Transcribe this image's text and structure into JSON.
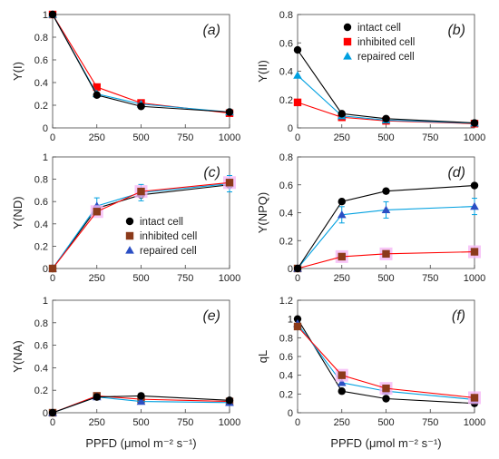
{
  "colors": {
    "intact": "#000000",
    "inhibited": "#ff0000",
    "inhibited_marker": "#8b3a1a",
    "repaired": "#00a0e0",
    "repaired_marker": "#2b4fc4",
    "error_halo": "#f5b8f5",
    "axis": "#444444",
    "grid": "none"
  },
  "legend_labels": {
    "intact": "intact cell",
    "inhibited": "inhibited cell",
    "repaired": "repaired cell"
  },
  "chart_data": [
    {
      "id": "a",
      "type": "line",
      "label": "(a)",
      "ylabel": "Y(I)",
      "xlabel": "",
      "x": [
        0,
        250,
        500,
        1000
      ],
      "xticks": [
        "0",
        "250",
        "500",
        "750",
        "1000"
      ],
      "ylim": [
        0,
        1
      ],
      "yticks": [
        "0",
        "0.2",
        "0.4",
        "0.6",
        "0.8",
        "1"
      ],
      "legend": "none",
      "series": [
        {
          "key": "intact",
          "values": [
            1.0,
            0.29,
            0.19,
            0.14
          ]
        },
        {
          "key": "inhibited",
          "values": [
            1.0,
            0.36,
            0.22,
            0.13
          ]
        },
        {
          "key": "repaired",
          "values": [
            1.0,
            0.3,
            0.21,
            0.14
          ]
        }
      ]
    },
    {
      "id": "b",
      "type": "line",
      "label": "(b)",
      "ylabel": "Y(II)",
      "xlabel": "",
      "x": [
        0,
        250,
        500,
        1000
      ],
      "xticks": [
        "0",
        "250",
        "500",
        "750",
        "1000"
      ],
      "ylim": [
        0,
        0.8
      ],
      "yticks": [
        "0",
        "0.2",
        "0.4",
        "0.6",
        "0.8"
      ],
      "legend": "top-right",
      "series": [
        {
          "key": "intact",
          "values": [
            0.55,
            0.1,
            0.065,
            0.035
          ]
        },
        {
          "key": "inhibited",
          "values": [
            0.18,
            0.075,
            0.05,
            0.03
          ]
        },
        {
          "key": "repaired",
          "values": [
            0.37,
            0.085,
            0.055,
            0.033
          ]
        }
      ]
    },
    {
      "id": "c",
      "type": "line",
      "label": "(c)",
      "ylabel": "Y(ND)",
      "xlabel": "",
      "x": [
        0,
        250,
        500,
        1000
      ],
      "xticks": [
        "0",
        "250",
        "500",
        "750",
        "1000"
      ],
      "ylim": [
        0,
        1
      ],
      "yticks": [
        "0",
        "0.2",
        "0.4",
        "0.6",
        "0.8",
        "1"
      ],
      "legend": "bottom-right",
      "series": [
        {
          "key": "intact",
          "values": [
            0.0,
            0.54,
            0.66,
            0.75
          ]
        },
        {
          "key": "inhibited",
          "values": [
            0.0,
            0.51,
            0.69,
            0.77
          ]
        },
        {
          "key": "repaired",
          "values": [
            0.0,
            0.56,
            0.68,
            0.76
          ]
        }
      ]
    },
    {
      "id": "d",
      "type": "line",
      "label": "(d)",
      "ylabel": "Y(NPQ)",
      "xlabel": "",
      "x": [
        0,
        250,
        500,
        1000
      ],
      "xticks": [
        "0",
        "250",
        "500",
        "750",
        "1000"
      ],
      "ylim": [
        0,
        0.8
      ],
      "yticks": [
        "0",
        "0.2",
        "0.4",
        "0.6",
        "0.8"
      ],
      "legend": "none",
      "series": [
        {
          "key": "intact",
          "values": [
            0.0,
            0.48,
            0.555,
            0.595
          ]
        },
        {
          "key": "inhibited",
          "values": [
            0.0,
            0.085,
            0.105,
            0.12
          ]
        },
        {
          "key": "repaired",
          "values": [
            0.0,
            0.385,
            0.42,
            0.445
          ]
        }
      ]
    },
    {
      "id": "e",
      "type": "line",
      "label": "(e)",
      "ylabel": "Y(NA)",
      "xlabel": "PPFD (μmol m⁻² s⁻¹)",
      "x": [
        0,
        250,
        500,
        1000
      ],
      "xticks": [
        "0",
        "250",
        "500",
        "750",
        "1000"
      ],
      "ylim": [
        0,
        1
      ],
      "yticks": [
        "0",
        "0.2",
        "0.4",
        "0.6",
        "0.8",
        "1"
      ],
      "legend": "none",
      "series": [
        {
          "key": "intact",
          "values": [
            0.0,
            0.14,
            0.15,
            0.11
          ]
        },
        {
          "key": "inhibited",
          "values": [
            0.0,
            0.15,
            0.12,
            0.1
          ]
        },
        {
          "key": "repaired",
          "values": [
            0.0,
            0.14,
            0.1,
            0.09
          ]
        }
      ]
    },
    {
      "id": "f",
      "type": "line",
      "label": "(f)",
      "ylabel": "qL",
      "xlabel": "PPFD (μmol m⁻² s⁻¹)",
      "x": [
        0,
        250,
        500,
        1000
      ],
      "xticks": [
        "0",
        "250",
        "500",
        "750",
        "1000"
      ],
      "ylim": [
        0,
        1.2
      ],
      "yticks": [
        "0",
        "0.2",
        "0.4",
        "0.6",
        "0.8",
        "1",
        "1.2"
      ],
      "legend": "none",
      "series": [
        {
          "key": "intact",
          "values": [
            1.0,
            0.23,
            0.15,
            0.1
          ]
        },
        {
          "key": "inhibited",
          "values": [
            0.92,
            0.4,
            0.26,
            0.16
          ]
        },
        {
          "key": "repaired",
          "values": [
            0.95,
            0.32,
            0.23,
            0.14
          ]
        }
      ]
    }
  ]
}
